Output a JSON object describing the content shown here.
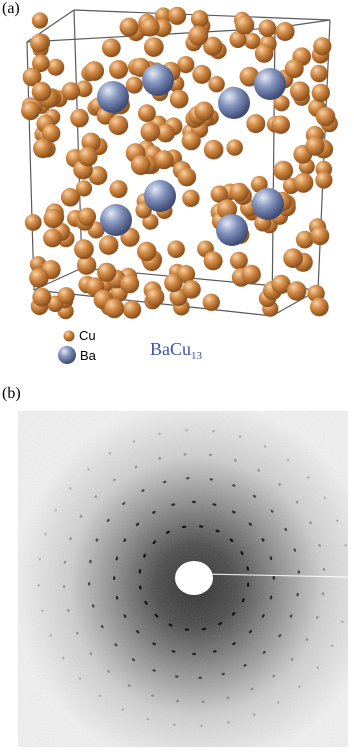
{
  "panel_a": {
    "label": "(a)",
    "legend": [
      {
        "element": "Cu",
        "color": "#c7823f"
      },
      {
        "element": "Ba",
        "color": "#6f7fa6"
      }
    ],
    "formula_base": "BaCu",
    "formula_subscript": "13",
    "formula_color": "#3b54a3"
  },
  "panel_b": {
    "label": "(b)"
  }
}
